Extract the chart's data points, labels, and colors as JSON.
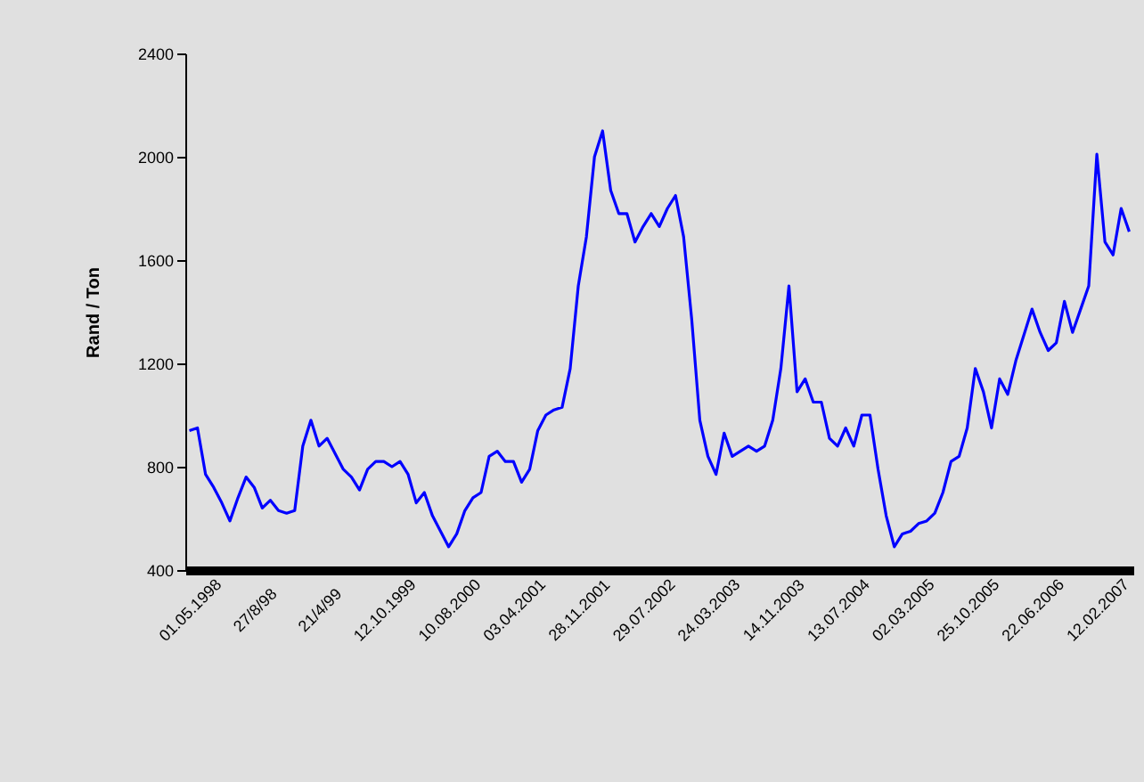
{
  "chart_data": {
    "type": "line",
    "ylabel": "Rand / Ton",
    "categories": [
      "01.05.1998",
      null,
      null,
      null,
      null,
      null,
      null,
      null,
      "27/8/98",
      null,
      null,
      null,
      null,
      null,
      null,
      null,
      "21/4/99",
      null,
      null,
      null,
      null,
      null,
      null,
      null,
      "12.10.1999",
      null,
      null,
      null,
      null,
      null,
      null,
      null,
      "10.08.2000",
      null,
      null,
      null,
      null,
      null,
      null,
      null,
      "03.04.2001",
      null,
      null,
      null,
      null,
      null,
      null,
      null,
      "28.11.2001",
      null,
      null,
      null,
      null,
      null,
      null,
      null,
      "29.07.2002",
      null,
      null,
      null,
      null,
      null,
      null,
      null,
      "24.03.2003",
      null,
      null,
      null,
      null,
      null,
      null,
      null,
      "14.11.2003",
      null,
      null,
      null,
      null,
      null,
      null,
      null,
      "13.07.2004",
      null,
      null,
      null,
      null,
      null,
      null,
      null,
      "02.03.2005",
      null,
      null,
      null,
      null,
      null,
      null,
      null,
      "25.10.2005",
      null,
      null,
      null,
      null,
      null,
      null,
      null,
      "22.06.2006",
      null,
      null,
      null,
      null,
      null,
      null,
      null,
      "12.02.2007",
      null,
      null,
      null,
      null
    ],
    "series": [
      {
        "color": "#0000ff",
        "values": [
          940,
          950,
          770,
          720,
          660,
          590,
          680,
          760,
          720,
          640,
          670,
          630,
          620,
          630,
          880,
          980,
          880,
          910,
          850,
          790,
          760,
          710,
          790,
          820,
          820,
          800,
          820,
          770,
          660,
          700,
          610,
          550,
          490,
          540,
          630,
          680,
          700,
          840,
          860,
          820,
          820,
          740,
          790,
          940,
          1000,
          1020,
          1030,
          1180,
          1500,
          1690,
          2000,
          2100,
          1870,
          1780,
          1780,
          1670,
          1730,
          1780,
          1730,
          1800,
          1850,
          1690,
          1370,
          980,
          840,
          770,
          930,
          840,
          860,
          880,
          860,
          880,
          980,
          1180,
          1500,
          1090,
          1140,
          1050,
          1050,
          910,
          880,
          950,
          880,
          1000,
          1000,
          790,
          610,
          490,
          540,
          550,
          580,
          590,
          620,
          700,
          820,
          840,
          950,
          1180,
          1090,
          950,
          1140,
          1080,
          1210,
          1310,
          1410,
          1320,
          1250,
          1280,
          1440,
          1320,
          1410,
          1500,
          2010,
          1670,
          1620,
          1800,
          1710
        ]
      }
    ],
    "ylim": [
      400,
      2400
    ],
    "yticks": [
      400,
      800,
      1200,
      1600,
      2000,
      2400
    ],
    "line_style": "solid",
    "marker": "none"
  }
}
